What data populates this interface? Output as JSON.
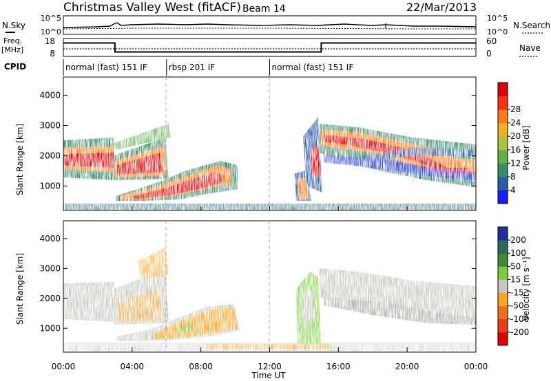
{
  "header": {
    "title": "Christmas Valley West (fitACF)",
    "beam": "Beam 14",
    "date": "22/Mar/2013"
  },
  "colors": {
    "power": [
      "#1a1aff",
      "#2a5aa8",
      "#3b8a6a",
      "#5fb04a",
      "#a8c83a",
      "#f0b020",
      "#ff7a10",
      "#ff3010",
      "#e00000"
    ],
    "velocity": [
      "#2030a0",
      "#2a6a5a",
      "#3f8a3a",
      "#7acc3a",
      "#c8c8c0",
      "#f8a820",
      "#f07020",
      "#e84010",
      "#e00000"
    ]
  },
  "chart_data": [
    {
      "type": "line",
      "panel": "noise",
      "left_label": "N.Sky",
      "left_ticks": [
        "10^5",
        "10^0"
      ],
      "right_label": "N.Search",
      "right_ticks": [
        "10^5",
        "10^0"
      ]
    },
    {
      "type": "line",
      "panel": "freq-nave",
      "left_label": [
        "Freq.",
        "[MHz]"
      ],
      "left_ticks": [
        "18",
        "8"
      ],
      "right_label": "Nave",
      "right_ticks": [
        "60",
        "0"
      ],
      "freq_segments": [
        {
          "from": 0,
          "to": 3,
          "value": 15.5
        },
        {
          "from": 3,
          "to": 15,
          "value": 10.5
        },
        {
          "from": 15,
          "to": 24,
          "value": 15.5
        }
      ]
    },
    {
      "type": "table",
      "panel": "cpid",
      "label": "CPID",
      "modes": [
        {
          "start": 0,
          "end": 6,
          "label": "normal (fast) 151 IF"
        },
        {
          "start": 6,
          "end": 12,
          "label": "rbsp 201 IF"
        },
        {
          "start": 12,
          "end": 24,
          "label": "normal (fast) 151 IF"
        }
      ]
    },
    {
      "type": "heatmap",
      "panel": "power",
      "ylabel": "Slant Range [km]",
      "yticks": [
        1000,
        2000,
        3000,
        4000
      ],
      "ylim": [
        200,
        4600
      ],
      "xlim": [
        0,
        24
      ],
      "colorbar_label": "Power [dB]",
      "colorbar_ticks": [
        "4",
        "8",
        "12",
        "16",
        "20",
        "24",
        "28"
      ]
    },
    {
      "type": "heatmap",
      "panel": "velocity",
      "ylabel": "Slant Range [km]",
      "yticks": [
        1000,
        2000,
        3000,
        4000
      ],
      "ylim": [
        200,
        4600
      ],
      "xlim": [
        0,
        24
      ],
      "xlabel": "Time UT",
      "xticks": [
        "00:00",
        "04:00",
        "08:00",
        "12:00",
        "16:00",
        "20:00",
        "00:00"
      ],
      "colorbar_label": "Velocity [m s⁻¹]",
      "colorbar_ticks": [
        "200",
        "100",
        "50",
        "15",
        "-15",
        "-50",
        "-100",
        "-200"
      ]
    }
  ]
}
